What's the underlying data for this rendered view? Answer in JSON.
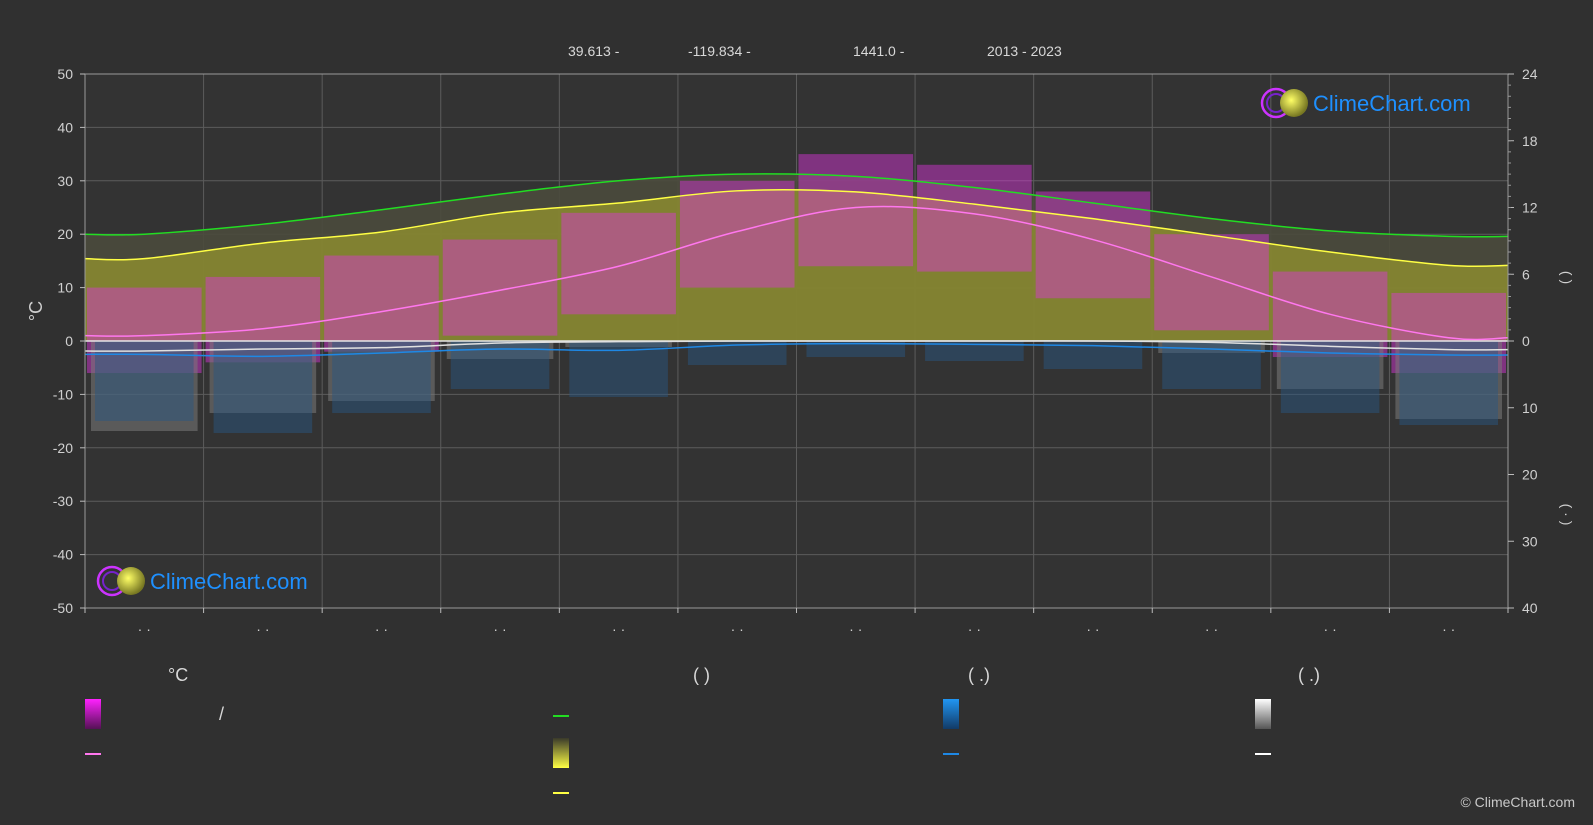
{
  "header": {
    "lat": "39.613 -",
    "lon": "-119.834 -",
    "elev": "1441.0 -",
    "years": "2013 - 2023"
  },
  "brand": {
    "logo_text": "ClimeChart.com",
    "copyright": "© ClimeChart.com"
  },
  "colors": {
    "background": "#303030",
    "daylight": "#22dd22",
    "sunshine_line": "#ffff44",
    "sunshine_fill": "#bfbf3a",
    "temp_range": "#dd22dd",
    "temp_mean": "#ff77ee",
    "rain": "#1e88e5",
    "snow": "#e0e0e0",
    "brand_blue": "#1e90ff"
  },
  "legend": {
    "temp_header": "°C",
    "sun_header": "(          )",
    "rain_header": "(   .)",
    "snow_header": "(   .)",
    "temp_range_label": "/"
  },
  "icons": [
    "climechart-logo-icon"
  ],
  "chart_data": {
    "type": "line",
    "title": "",
    "xlabel": "",
    "ylabel_left": "°C",
    "ylabel_right": "( )",
    "ylabel_right2": "( · )",
    "month_tick_labels": [
      "· ·",
      "· ·",
      "· ·",
      "· ·",
      "· ·",
      "· ·",
      "· ·",
      "· ·",
      "· ·",
      "· ·",
      "· ·",
      "· ·"
    ],
    "y_left": {
      "min": -50,
      "max": 50,
      "ticks": [
        50,
        40,
        30,
        20,
        10,
        0,
        -10,
        -20,
        -30,
        -40,
        -50
      ]
    },
    "y_right_top": {
      "label_ticks": [
        24,
        18,
        12,
        6,
        0
      ],
      "unit": "hours"
    },
    "y_right_bottom": {
      "label_ticks": [
        0,
        10,
        20,
        30,
        40
      ],
      "unit": "mm"
    },
    "grid": true,
    "months": 12,
    "series": [
      {
        "key": "daylight_hours",
        "values": [
          9.6,
          10.5,
          11.8,
          13.2,
          14.4,
          15.0,
          14.8,
          13.8,
          12.4,
          11.0,
          9.9,
          9.4
        ]
      },
      {
        "key": "sunshine_hours",
        "values": [
          7.4,
          8.8,
          9.8,
          11.5,
          12.4,
          13.5,
          13.4,
          12.3,
          11.0,
          9.5,
          8.0,
          6.8
        ]
      },
      {
        "key": "temp_mean_c",
        "values": [
          1.0,
          2.3,
          5.5,
          9.5,
          14.0,
          20.5,
          25.0,
          23.8,
          19.0,
          12.0,
          5.0,
          0.6
        ]
      },
      {
        "key": "temp_daily_max_c",
        "values": [
          10,
          12,
          16,
          19,
          24,
          30,
          35,
          33,
          28,
          20,
          13,
          9
        ]
      },
      {
        "key": "temp_daily_min_c",
        "values": [
          -6,
          -4,
          -2,
          1,
          5,
          10,
          14,
          13,
          8,
          2,
          -3,
          -6
        ]
      },
      {
        "key": "rain_mm",
        "values": [
          2.0,
          2.3,
          1.8,
          1.2,
          1.4,
          0.6,
          0.4,
          0.5,
          0.7,
          1.2,
          1.8,
          2.1
        ]
      },
      {
        "key": "snow_mm",
        "values": [
          1.5,
          1.2,
          1.0,
          0.3,
          0.1,
          0.0,
          0.0,
          0.0,
          0.0,
          0.2,
          0.8,
          1.3
        ]
      }
    ]
  }
}
